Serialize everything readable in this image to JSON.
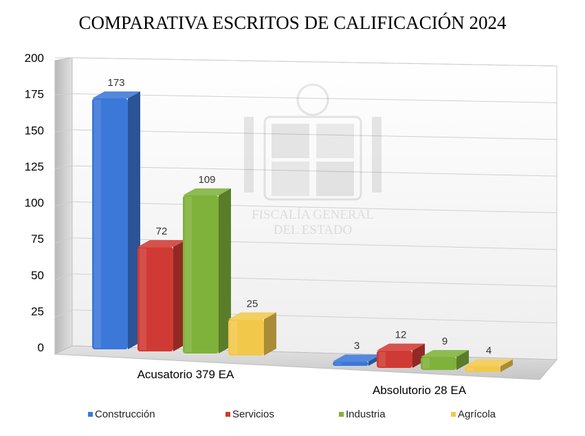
{
  "chart_data": {
    "type": "bar",
    "title": "COMPARATIVA ESCRITOS DE CALIFICACIÓN 2024",
    "xlabel": "",
    "ylabel": "",
    "categories": [
      "Acusatorio 379 EA",
      "Absolutorio 28 EA"
    ],
    "series": [
      {
        "name": "Construcción",
        "values": [
          173,
          3
        ],
        "color": "#3c78d8"
      },
      {
        "name": "Servicios",
        "values": [
          72,
          12
        ],
        "color": "#d03a34"
      },
      {
        "name": "Industria",
        "values": [
          109,
          9
        ],
        "color": "#7fb23a"
      },
      {
        "name": "Agrícola",
        "values": [
          25,
          4
        ],
        "color": "#f2c84b"
      }
    ],
    "yticks": [
      0,
      25,
      50,
      75,
      100,
      125,
      150,
      175,
      200
    ],
    "ylim": [
      0,
      200
    ],
    "grid": true,
    "legend_position": "bottom",
    "watermark": [
      "FISCALÍA GENERAL",
      "DEL ESTADO"
    ]
  }
}
